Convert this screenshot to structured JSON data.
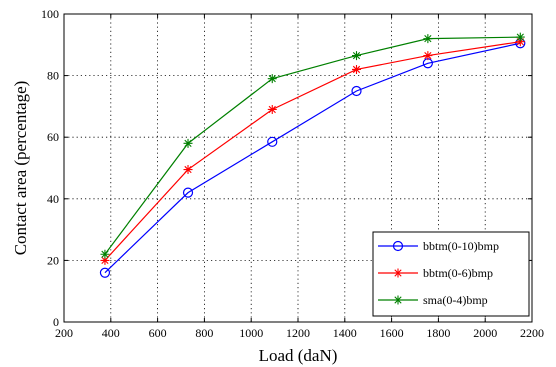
{
  "chart_data": {
    "type": "line",
    "xlabel": "Load  (daN)",
    "ylabel": "Contact area (percentage)",
    "xlim": [
      200,
      2200
    ],
    "ylim": [
      0,
      100
    ],
    "xticks": [
      "200",
      "400",
      "600",
      "800",
      "1000",
      "1200",
      "1400",
      "1600",
      "1800",
      "2000",
      "2200"
    ],
    "yticks": [
      "0",
      "20",
      "40",
      "60",
      "80",
      "100"
    ],
    "grid": true,
    "legend_position": "bottom-right",
    "series": [
      {
        "name": "bbtm(0-10)bmp",
        "color": "#0000ff",
        "marker": "circle",
        "x": [
          375,
          730,
          1090,
          1450,
          1755,
          2150
        ],
        "y": [
          16,
          42,
          58.5,
          75,
          84,
          90.5
        ]
      },
      {
        "name": "bbtm(0-6)bmp",
        "color": "#ff0000",
        "marker": "star",
        "x": [
          375,
          730,
          1090,
          1450,
          1755,
          2150
        ],
        "y": [
          20,
          49.5,
          69,
          82,
          86.5,
          91
        ]
      },
      {
        "name": "sma(0-4)bmp",
        "color": "#008000",
        "marker": "star",
        "x": [
          375,
          730,
          1090,
          1450,
          1755,
          2150
        ],
        "y": [
          22,
          58,
          79,
          86.5,
          92,
          92.5
        ]
      }
    ]
  }
}
